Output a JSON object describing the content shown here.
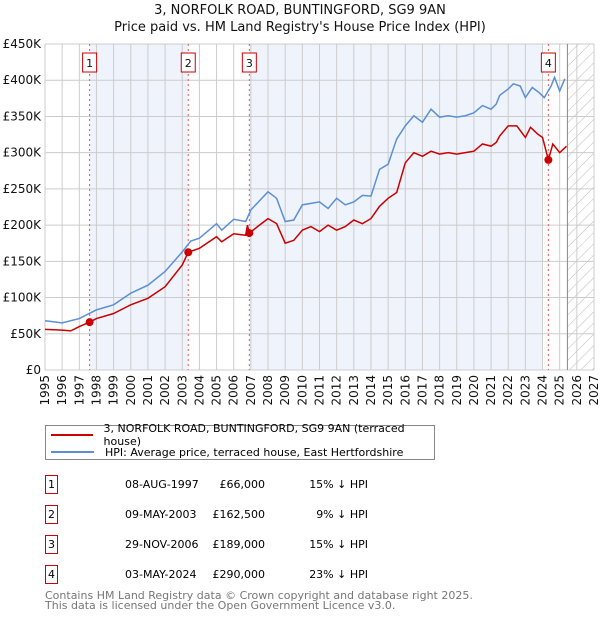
{
  "chart_data": {
    "type": "line",
    "title": "3, NORFOLK ROAD, BUNTINGFORD, SG9 9AN",
    "subtitle": "Price paid vs. HM Land Registry's House Price Index (HPI)",
    "xlim": [
      1995,
      2027
    ],
    "ylim": [
      0,
      450000
    ],
    "x_ticks": [
      "1995",
      "1996",
      "1997",
      "1998",
      "1999",
      "2000",
      "2001",
      "2002",
      "2003",
      "2004",
      "2005",
      "2006",
      "2007",
      "2008",
      "2009",
      "2010",
      "2011",
      "2012",
      "2013",
      "2014",
      "2015",
      "2016",
      "2017",
      "2018",
      "2019",
      "2020",
      "2021",
      "2022",
      "2023",
      "2024",
      "2025",
      "2026",
      "2027"
    ],
    "y_ticks": [
      {
        "value": 0,
        "label": "£0"
      },
      {
        "value": 50000,
        "label": "£50K"
      },
      {
        "value": 100000,
        "label": "£100K"
      },
      {
        "value": 150000,
        "label": "£150K"
      },
      {
        "value": 200000,
        "label": "£200K"
      },
      {
        "value": 250000,
        "label": "£250K"
      },
      {
        "value": 300000,
        "label": "£300K"
      },
      {
        "value": 350000,
        "label": "£350K"
      },
      {
        "value": 400000,
        "label": "£400K"
      },
      {
        "value": 450000,
        "label": "£450K"
      }
    ],
    "grid": true,
    "forecast_hatch_from": 2025.45,
    "shaded_ranges": [
      [
        1997.6,
        2003.35
      ],
      [
        2006.91,
        2024.0
      ]
    ],
    "series": [
      {
        "name": "3, NORFOLK ROAD, BUNTINGFORD, SG9 9AN (terraced house)",
        "color": "#cc0000",
        "points": [
          [
            1995,
            56
          ],
          [
            1996,
            55
          ],
          [
            1996.5,
            54
          ],
          [
            1997,
            60
          ],
          [
            1997.6,
            66
          ],
          [
            1998,
            71
          ],
          [
            1999,
            78
          ],
          [
            2000,
            90
          ],
          [
            2001,
            99
          ],
          [
            2002,
            115
          ],
          [
            2003,
            145
          ],
          [
            2003.35,
            162.5
          ],
          [
            2004,
            168
          ],
          [
            2005,
            184
          ],
          [
            2005.3,
            177
          ],
          [
            2006,
            188
          ],
          [
            2006.7,
            186
          ],
          [
            2006.8,
            200
          ],
          [
            2006.91,
            189
          ],
          [
            2007.5,
            200
          ],
          [
            2008,
            209
          ],
          [
            2008.5,
            202
          ],
          [
            2009,
            175
          ],
          [
            2009.5,
            179
          ],
          [
            2010,
            193
          ],
          [
            2010.5,
            198
          ],
          [
            2011,
            191
          ],
          [
            2011.5,
            200
          ],
          [
            2012,
            193
          ],
          [
            2012.5,
            198
          ],
          [
            2013,
            207
          ],
          [
            2013.5,
            202
          ],
          [
            2014,
            209
          ],
          [
            2014.5,
            226
          ],
          [
            2015,
            237
          ],
          [
            2015.5,
            245
          ],
          [
            2016,
            286
          ],
          [
            2016.5,
            300
          ],
          [
            2017,
            295
          ],
          [
            2017.5,
            302
          ],
          [
            2018,
            298
          ],
          [
            2018.5,
            300
          ],
          [
            2019,
            298
          ],
          [
            2019.5,
            300
          ],
          [
            2020,
            302
          ],
          [
            2020.5,
            312
          ],
          [
            2021,
            309
          ],
          [
            2021.3,
            314
          ],
          [
            2021.5,
            323
          ],
          [
            2022,
            337
          ],
          [
            2022.5,
            337
          ],
          [
            2023,
            321
          ],
          [
            2023.3,
            335
          ],
          [
            2023.7,
            326
          ],
          [
            2024.0,
            321
          ],
          [
            2024.34,
            290
          ],
          [
            2024.6,
            312
          ],
          [
            2025,
            300
          ],
          [
            2025.4,
            309
          ]
        ]
      },
      {
        "name": "HPI: Average price, terraced house, East Hertfordshire",
        "color": "#5b8fd6",
        "points": [
          [
            1995,
            68
          ],
          [
            1996,
            65
          ],
          [
            1997,
            71
          ],
          [
            1998,
            83
          ],
          [
            1999,
            90
          ],
          [
            2000,
            106
          ],
          [
            2001,
            117
          ],
          [
            2002,
            136
          ],
          [
            2003,
            163
          ],
          [
            2003.5,
            178
          ],
          [
            2004,
            182
          ],
          [
            2005,
            202
          ],
          [
            2005.3,
            193
          ],
          [
            2006,
            208
          ],
          [
            2006.7,
            205
          ],
          [
            2007,
            221
          ],
          [
            2008,
            246
          ],
          [
            2008.5,
            237
          ],
          [
            2009,
            205
          ],
          [
            2009.5,
            207
          ],
          [
            2010,
            228
          ],
          [
            2011,
            232
          ],
          [
            2011.5,
            223
          ],
          [
            2012,
            237
          ],
          [
            2012.5,
            228
          ],
          [
            2013,
            232
          ],
          [
            2013.5,
            241
          ],
          [
            2014,
            240
          ],
          [
            2014.5,
            277
          ],
          [
            2015,
            284
          ],
          [
            2015.5,
            319
          ],
          [
            2016,
            337
          ],
          [
            2016.5,
            351
          ],
          [
            2017,
            342
          ],
          [
            2017.5,
            360
          ],
          [
            2018,
            349
          ],
          [
            2018.5,
            351
          ],
          [
            2019,
            349
          ],
          [
            2019.5,
            351
          ],
          [
            2020,
            355
          ],
          [
            2020.5,
            365
          ],
          [
            2021,
            360
          ],
          [
            2021.3,
            367
          ],
          [
            2021.5,
            379
          ],
          [
            2022,
            388
          ],
          [
            2022.3,
            395
          ],
          [
            2022.7,
            392
          ],
          [
            2023,
            376
          ],
          [
            2023.4,
            390
          ],
          [
            2023.8,
            383
          ],
          [
            2024.1,
            376
          ],
          [
            2024.5,
            392
          ],
          [
            2024.7,
            404
          ],
          [
            2025,
            385
          ],
          [
            2025.3,
            402
          ]
        ]
      }
    ],
    "sales": [
      {
        "label": "1",
        "x": 1997.6,
        "price": 66
      },
      {
        "label": "2",
        "x": 2003.35,
        "price": 162.5
      },
      {
        "label": "3",
        "x": 2006.91,
        "price": 189
      },
      {
        "label": "4",
        "x": 2024.34,
        "price": 290
      }
    ],
    "legend_position": "below"
  },
  "legend": [
    {
      "label": "3, NORFOLK ROAD, BUNTINGFORD, SG9 9AN (terraced house)",
      "color": "#cc0000"
    },
    {
      "label": "HPI: Average price, terraced house, East Hertfordshire",
      "color": "#5b8fd6"
    }
  ],
  "table": [
    {
      "num": "1",
      "date": "08-AUG-1997",
      "price": "£66,000",
      "hpi": "15% ↓ HPI"
    },
    {
      "num": "2",
      "date": "09-MAY-2003",
      "price": "£162,500",
      "hpi": "9% ↓ HPI"
    },
    {
      "num": "3",
      "date": "29-NOV-2006",
      "price": "£189,000",
      "hpi": "15% ↓ HPI"
    },
    {
      "num": "4",
      "date": "03-MAY-2024",
      "price": "£290,000",
      "hpi": "23% ↓ HPI"
    }
  ],
  "footer": [
    "Contains HM Land Registry data © Crown copyright and database right 2025.",
    "This data is licensed under the Open Government Licence v3.0."
  ]
}
